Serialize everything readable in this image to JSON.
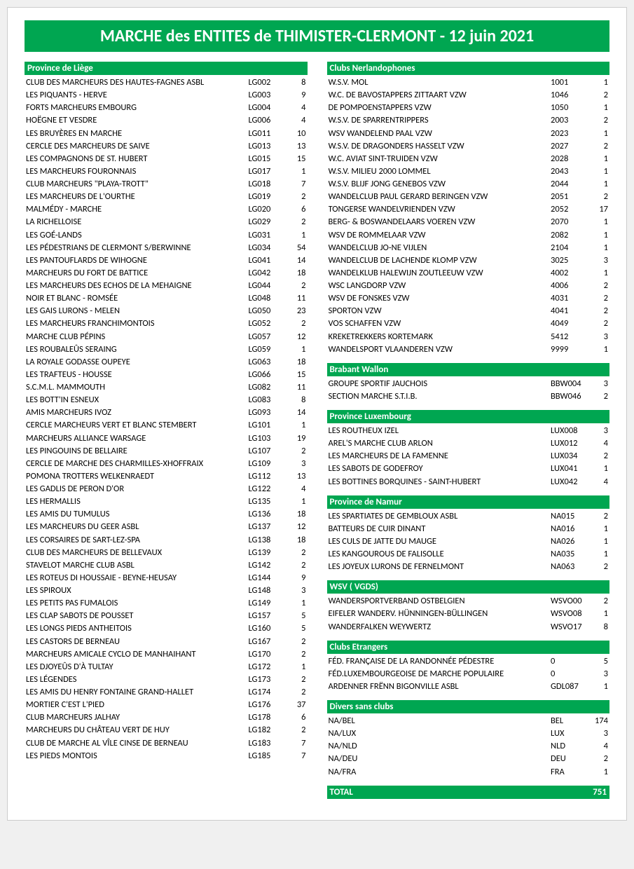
{
  "title": "MARCHE des ENTITES de THIMISTER-CLERMONT - 12 juin 2021",
  "colors": {
    "accent": "#00a651",
    "text_on_accent": "#ffffff",
    "body_text": "#000000",
    "page_bg": "#ffffff"
  },
  "left": {
    "sections": [
      {
        "title": "Province de Liège",
        "rows": [
          {
            "name": "CLUB DES MARCHEURS DES HAUTES-FAGNES ASBL",
            "code": "LG002",
            "count": 8
          },
          {
            "name": "LES PIQUANTS - HERVE",
            "code": "LG003",
            "count": 9
          },
          {
            "name": "FORTS MARCHEURS EMBOURG",
            "code": "LG004",
            "count": 4
          },
          {
            "name": "HOËGNE ET VESDRE",
            "code": "LG006",
            "count": 4
          },
          {
            "name": "LES BRUYÈRES EN MARCHE",
            "code": "LG011",
            "count": 10
          },
          {
            "name": "CERCLE DES MARCHEURS DE SAIVE",
            "code": "LG013",
            "count": 13
          },
          {
            "name": "LES COMPAGNONS DE ST. HUBERT",
            "code": "LG015",
            "count": 15
          },
          {
            "name": "LES MARCHEURS FOURONNAIS",
            "code": "LG017",
            "count": 1
          },
          {
            "name": "CLUB MARCHEURS \"PLAYA-TROTT\"",
            "code": "LG018",
            "count": 7
          },
          {
            "name": "LES MARCHEURS DE L'OURTHE",
            "code": "LG019",
            "count": 2
          },
          {
            "name": "MALMÉDY - MARCHE",
            "code": "LG020",
            "count": 6
          },
          {
            "name": "LA RICHELLOISE",
            "code": "LG029",
            "count": 2
          },
          {
            "name": "LES GOÉ-LANDS",
            "code": "LG031",
            "count": 1
          },
          {
            "name": "LES PÉDESTRIANS DE CLERMONT S/BERWINNE",
            "code": "LG034",
            "count": 54
          },
          {
            "name": "LES PANTOUFLARDS DE WIHOGNE",
            "code": "LG041",
            "count": 14
          },
          {
            "name": "MARCHEURS DU FORT DE BATTICE",
            "code": "LG042",
            "count": 18
          },
          {
            "name": "LES MARCHEURS DES ECHOS DE LA MEHAIGNE",
            "code": "LG044",
            "count": 2
          },
          {
            "name": "NOIR ET BLANC - ROMSÉE",
            "code": "LG048",
            "count": 11
          },
          {
            "name": "LES GAIS LURONS - MELEN",
            "code": "LG050",
            "count": 23
          },
          {
            "name": "LES MARCHEURS FRANCHIMONTOIS",
            "code": "LG052",
            "count": 2
          },
          {
            "name": "MARCHE CLUB PÉPINS",
            "code": "LG057",
            "count": 12
          },
          {
            "name": "LES ROUBALEÛS SERAING",
            "code": "LG059",
            "count": 1
          },
          {
            "name": "LA ROYALE GODASSE OUPEYE",
            "code": "LG063",
            "count": 18
          },
          {
            "name": "LES TRAFTEUS - HOUSSE",
            "code": "LG066",
            "count": 15
          },
          {
            "name": "S.C.M.L. MAMMOUTH",
            "code": "LG082",
            "count": 11
          },
          {
            "name": "LES BOTT'IN ESNEUX",
            "code": "LG083",
            "count": 8
          },
          {
            "name": "AMIS MARCHEURS IVOZ",
            "code": "LG093",
            "count": 14
          },
          {
            "name": "CERCLE MARCHEURS VERT ET BLANC STEMBERT",
            "code": "LG101",
            "count": 1
          },
          {
            "name": "MARCHEURS ALLIANCE WARSAGE",
            "code": "LG103",
            "count": 19
          },
          {
            "name": "LES PINGOUINS DE BELLAIRE",
            "code": "LG107",
            "count": 2
          },
          {
            "name": "CERCLE DE MARCHE DES CHARMILLES-XHOFFRAIX",
            "code": "LG109",
            "count": 3
          },
          {
            "name": "POMONA TROTTERS WELKENRAEDT",
            "code": "LG112",
            "count": 13
          },
          {
            "name": "LES GADLIS DE PERON D'OR",
            "code": "LG122",
            "count": 4
          },
          {
            "name": "LES HERMALLIS",
            "code": "LG135",
            "count": 1
          },
          {
            "name": "LES AMIS DU TUMULUS",
            "code": "LG136",
            "count": 18
          },
          {
            "name": "LES MARCHEURS DU GEER ASBL",
            "code": "LG137",
            "count": 12
          },
          {
            "name": "LES CORSAIRES DE SART-LEZ-SPA",
            "code": "LG138",
            "count": 18
          },
          {
            "name": "CLUB DES MARCHEURS DE BELLEVAUX",
            "code": "LG139",
            "count": 2
          },
          {
            "name": "STAVELOT MARCHE CLUB ASBL",
            "code": "LG142",
            "count": 2
          },
          {
            "name": "LES ROTEUS DI HOUSSAIE - BEYNE-HEUSAY",
            "code": "LG144",
            "count": 9
          },
          {
            "name": "LES SPIROUX",
            "code": "LG148",
            "count": 3
          },
          {
            "name": "LES PETITS PAS FUMALOIS",
            "code": "LG149",
            "count": 1
          },
          {
            "name": "LES CLAP SABOTS DE POUSSET",
            "code": "LG157",
            "count": 5
          },
          {
            "name": "LES LONGS PIEDS ANTHEITOIS",
            "code": "LG160",
            "count": 5
          },
          {
            "name": "LES CASTORS DE BERNEAU",
            "code": "LG167",
            "count": 2
          },
          {
            "name": "MARCHEURS AMICALE CYCLO DE MANHAIHANT",
            "code": "LG170",
            "count": 2
          },
          {
            "name": "LES DJOYEÛS D'À TULTAY",
            "code": "LG172",
            "count": 1
          },
          {
            "name": "LES LÉGENDES",
            "code": "LG173",
            "count": 2
          },
          {
            "name": "LES AMIS DU HENRY FONTAINE GRAND-HALLET",
            "code": "LG174",
            "count": 2
          },
          {
            "name": "MORTIER C'EST L'PIED",
            "code": "LG176",
            "count": 37
          },
          {
            "name": "CLUB MARCHEURS JALHAY",
            "code": "LG178",
            "count": 6
          },
          {
            "name": "MARCHEURS DU CHÂTEAU VERT DE HUY",
            "code": "LG182",
            "count": 2
          },
          {
            "name": "CLUB DE MARCHE AL VÎLE CINSE DE BERNEAU",
            "code": "LG183",
            "count": 7
          },
          {
            "name": "LES PIEDS MONTOIS",
            "code": "LG185",
            "count": 7
          }
        ]
      }
    ]
  },
  "right": {
    "sections": [
      {
        "title": "Clubs Nerlandophones",
        "rows": [
          {
            "name": "W.S.V. MOL",
            "code": "1001",
            "count": 1
          },
          {
            "name": "W.C. DE BAVOSTAPPERS ZITTAART VZW",
            "code": "1046",
            "count": 2
          },
          {
            "name": "DE POMPOENSTAPPERS VZW",
            "code": "1050",
            "count": 1
          },
          {
            "name": "W.S.V. DE SPARRENTRIPPERS",
            "code": "2003",
            "count": 2
          },
          {
            "name": "WSV WANDELEND PAAL VZW",
            "code": "2023",
            "count": 1
          },
          {
            "name": "W.S.V. DE DRAGONDERS HASSELT VZW",
            "code": "2027",
            "count": 2
          },
          {
            "name": "W.C. AVIAT SINT-TRUIDEN VZW",
            "code": "2028",
            "count": 1
          },
          {
            "name": "W.S.V. MILIEU 2000 LOMMEL",
            "code": "2043",
            "count": 1
          },
          {
            "name": "W.S.V. BLIJF JONG GENEBOS VZW",
            "code": "2044",
            "count": 1
          },
          {
            "name": "WANDELCLUB PAUL GERARD BERINGEN VZW",
            "code": "2051",
            "count": 2
          },
          {
            "name": "TONGERSE WANDELVRIENDEN VZW",
            "code": "2052",
            "count": 17
          },
          {
            "name": "BERG- & BOSWANDELAARS VOEREN VZW",
            "code": "2070",
            "count": 1
          },
          {
            "name": "WSV DE ROMMELAAR VZW",
            "code": "2082",
            "count": 1
          },
          {
            "name": "WANDELCLUB JO-NE VIJLEN",
            "code": "2104",
            "count": 1
          },
          {
            "name": "WANDELCLUB DE LACHENDE KLOMP VZW",
            "code": "3025",
            "count": 3
          },
          {
            "name": "WANDELKLUB HALEWIJN ZOUTLEEUW VZW",
            "code": "4002",
            "count": 1
          },
          {
            "name": "WSC LANGDORP VZW",
            "code": "4006",
            "count": 2
          },
          {
            "name": "WSV DE FONSKES VZW",
            "code": "4031",
            "count": 2
          },
          {
            "name": "SPORTON VZW",
            "code": "4041",
            "count": 2
          },
          {
            "name": "VOS SCHAFFEN VZW",
            "code": "4049",
            "count": 2
          },
          {
            "name": "KREKETREKKERS KORTEMARK",
            "code": "5412",
            "count": 3
          },
          {
            "name": "WANDELSPORT VLAANDEREN VZW",
            "code": "9999",
            "count": 1
          }
        ]
      },
      {
        "title": "Brabant Wallon",
        "rows": [
          {
            "name": "GROUPE SPORTIF JAUCHOIS",
            "code": "BBW004",
            "count": 3
          },
          {
            "name": "SECTION MARCHE S.T.I.B.",
            "code": "BBW046",
            "count": 2
          }
        ]
      },
      {
        "title": "Province Luxembourg",
        "rows": [
          {
            "name": "LES ROUTHEUX IZEL",
            "code": "LUX008",
            "count": 3
          },
          {
            "name": "AREL'S MARCHE CLUB ARLON",
            "code": "LUX012",
            "count": 4
          },
          {
            "name": "LES MARCHEURS DE LA FAMENNE",
            "code": "LUX034",
            "count": 2
          },
          {
            "name": "LES SABOTS DE GODEFROY",
            "code": "LUX041",
            "count": 1
          },
          {
            "name": "LES BOTTINES BORQUINES - SAINT-HUBERT",
            "code": "LUX042",
            "count": 4
          }
        ]
      },
      {
        "title": "Province de Namur",
        "rows": [
          {
            "name": "LES SPARTIATES DE GEMBLOUX ASBL",
            "code": "NA015",
            "count": 2
          },
          {
            "name": "BATTEURS DE CUIR DINANT",
            "code": "NA016",
            "count": 1
          },
          {
            "name": "LES CULS DE JATTE DU MAUGE",
            "code": "NA026",
            "count": 1
          },
          {
            "name": "LES KANGOUROUS DE FALISOLLE",
            "code": "NA035",
            "count": 1
          },
          {
            "name": "LES JOYEUX LURONS DE FERNELMONT",
            "code": "NA063",
            "count": 2
          }
        ]
      },
      {
        "title": "WSV ( VGDS)",
        "rows": [
          {
            "name": "WANDERSPORTVERBAND OSTBELGIEN",
            "code": "WSVO00",
            "count": 2
          },
          {
            "name": "EIFELER WANDERV. HÜNNINGEN-BÜLLINGEN",
            "code": "WSVO08",
            "count": 1
          },
          {
            "name": "WANDERFALKEN WEYWERTZ",
            "code": "WSVO17",
            "count": 8
          }
        ]
      },
      {
        "title": "Clubs Etrangers",
        "rows": [
          {
            "name": "FÉD. FRANÇAISE DE LA RANDONNÉE PÉDESTRE",
            "code": "0",
            "count": 5
          },
          {
            "name": "FÉD.LUXEMBOURGEOISE DE MARCHE POPULAIRE",
            "code": "0",
            "count": 3
          },
          {
            "name": "ARDENNER FRËNN BIGONVILLE ASBL",
            "code": "GDL087",
            "count": 1
          }
        ]
      },
      {
        "title": "Divers sans clubs",
        "rows": [
          {
            "name": "NA/BEL",
            "code": "BEL",
            "count": 174
          },
          {
            "name": "NA/LUX",
            "code": "LUX",
            "count": 3
          },
          {
            "name": "NA/NLD",
            "code": "NLD",
            "count": 4
          },
          {
            "name": "NA/DEU",
            "code": "DEU",
            "count": 2
          },
          {
            "name": "NA/FRA",
            "code": "FRA",
            "count": 1
          }
        ]
      }
    ]
  },
  "total": {
    "label": "TOTAL",
    "value": 751
  }
}
